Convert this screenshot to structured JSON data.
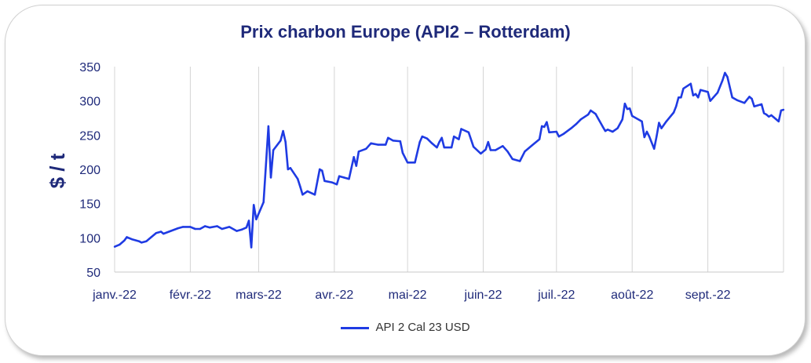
{
  "chart_data": {
    "type": "line",
    "title": "Prix charbon Europe (API2 – Rotterdam)",
    "ylabel": "$ / t",
    "xlabel": "",
    "ylim": [
      50,
      350
    ],
    "yticks": [
      50,
      100,
      150,
      200,
      250,
      300,
      350
    ],
    "x_tick_labels": [
      "janv.-22",
      "févr.-22",
      "mars-22",
      "avr.-22",
      "mai-22",
      "juin-22",
      "juil.-22",
      "août-22",
      "sept.-22"
    ],
    "grid": "vertical",
    "legend": "bottom",
    "series": [
      {
        "name": "API 2 Cal 23 USD",
        "color": "#1f3be3",
        "points": [
          [
            "2022-01-01",
            87
          ],
          [
            "2022-01-03",
            90
          ],
          [
            "2022-01-05",
            96
          ],
          [
            "2022-01-06",
            101
          ],
          [
            "2022-01-08",
            98
          ],
          [
            "2022-01-11",
            95
          ],
          [
            "2022-01-12",
            93
          ],
          [
            "2022-01-14",
            95
          ],
          [
            "2022-01-16",
            101
          ],
          [
            "2022-01-18",
            107
          ],
          [
            "2022-01-20",
            109
          ],
          [
            "2022-01-21",
            106
          ],
          [
            "2022-01-24",
            110
          ],
          [
            "2022-01-27",
            114
          ],
          [
            "2022-01-29",
            116
          ],
          [
            "2022-02-01",
            116
          ],
          [
            "2022-02-03",
            113
          ],
          [
            "2022-02-05",
            113
          ],
          [
            "2022-02-07",
            117
          ],
          [
            "2022-02-09",
            115
          ],
          [
            "2022-02-12",
            117
          ],
          [
            "2022-02-14",
            113
          ],
          [
            "2022-02-17",
            116
          ],
          [
            "2022-02-20",
            110
          ],
          [
            "2022-02-22",
            112
          ],
          [
            "2022-02-24",
            115
          ],
          [
            "2022-02-25",
            125
          ],
          [
            "2022-02-26",
            86
          ],
          [
            "2022-02-27",
            148
          ],
          [
            "2022-02-28",
            127
          ],
          [
            "2022-03-03",
            152
          ],
          [
            "2022-03-05",
            263
          ],
          [
            "2022-03-06",
            188
          ],
          [
            "2022-03-07",
            228
          ],
          [
            "2022-03-10",
            242
          ],
          [
            "2022-03-11",
            256
          ],
          [
            "2022-03-12",
            240
          ],
          [
            "2022-03-13",
            200
          ],
          [
            "2022-03-14",
            202
          ],
          [
            "2022-03-17",
            186
          ],
          [
            "2022-03-18",
            175
          ],
          [
            "2022-03-19",
            163
          ],
          [
            "2022-03-21",
            168
          ],
          [
            "2022-03-24",
            163
          ],
          [
            "2022-03-26",
            200
          ],
          [
            "2022-03-27",
            198
          ],
          [
            "2022-03-28",
            183
          ],
          [
            "2022-03-31",
            181
          ],
          [
            "2022-04-02",
            178
          ],
          [
            "2022-04-03",
            190
          ],
          [
            "2022-04-05",
            188
          ],
          [
            "2022-04-07",
            186
          ],
          [
            "2022-04-09",
            218
          ],
          [
            "2022-04-10",
            205
          ],
          [
            "2022-04-11",
            226
          ],
          [
            "2022-04-14",
            230
          ],
          [
            "2022-04-16",
            238
          ],
          [
            "2022-04-19",
            236
          ],
          [
            "2022-04-22",
            236
          ],
          [
            "2022-04-23",
            246
          ],
          [
            "2022-04-25",
            242
          ],
          [
            "2022-04-28",
            241
          ],
          [
            "2022-04-29",
            224
          ],
          [
            "2022-05-01",
            210
          ],
          [
            "2022-05-02",
            210
          ],
          [
            "2022-05-04",
            210
          ],
          [
            "2022-05-06",
            240
          ],
          [
            "2022-05-07",
            248
          ],
          [
            "2022-05-09",
            245
          ],
          [
            "2022-05-11",
            238
          ],
          [
            "2022-05-13",
            232
          ],
          [
            "2022-05-14",
            240
          ],
          [
            "2022-05-15",
            246
          ],
          [
            "2022-05-16",
            232
          ],
          [
            "2022-05-19",
            232
          ],
          [
            "2022-05-20",
            248
          ],
          [
            "2022-05-22",
            244
          ],
          [
            "2022-05-23",
            259
          ],
          [
            "2022-05-26",
            254
          ],
          [
            "2022-05-28",
            233
          ],
          [
            "2022-05-31",
            223
          ],
          [
            "2022-06-02",
            229
          ],
          [
            "2022-06-03",
            240
          ],
          [
            "2022-06-04",
            228
          ],
          [
            "2022-06-06",
            228
          ],
          [
            "2022-06-09",
            234
          ],
          [
            "2022-06-11",
            226
          ],
          [
            "2022-06-13",
            215
          ],
          [
            "2022-06-16",
            212
          ],
          [
            "2022-06-18",
            226
          ],
          [
            "2022-06-21",
            235
          ],
          [
            "2022-06-24",
            244
          ],
          [
            "2022-06-25",
            263
          ],
          [
            "2022-06-26",
            262
          ],
          [
            "2022-06-27",
            269
          ],
          [
            "2022-06-28",
            254
          ],
          [
            "2022-07-01",
            255
          ],
          [
            "2022-07-02",
            248
          ],
          [
            "2022-07-04",
            252
          ],
          [
            "2022-07-07",
            260
          ],
          [
            "2022-07-09",
            266
          ],
          [
            "2022-07-11",
            273
          ],
          [
            "2022-07-14",
            280
          ],
          [
            "2022-07-15",
            286
          ],
          [
            "2022-07-17",
            281
          ],
          [
            "2022-07-20",
            262
          ],
          [
            "2022-07-21",
            256
          ],
          [
            "2022-07-22",
            258
          ],
          [
            "2022-07-24",
            255
          ],
          [
            "2022-07-26",
            260
          ],
          [
            "2022-07-28",
            273
          ],
          [
            "2022-07-29",
            296
          ],
          [
            "2022-07-30",
            288
          ],
          [
            "2022-07-31",
            289
          ],
          [
            "2022-08-01",
            278
          ],
          [
            "2022-08-04",
            272
          ],
          [
            "2022-08-05",
            270
          ],
          [
            "2022-08-06",
            247
          ],
          [
            "2022-08-07",
            255
          ],
          [
            "2022-08-08",
            248
          ],
          [
            "2022-08-10",
            230
          ],
          [
            "2022-08-11",
            248
          ],
          [
            "2022-08-12",
            268
          ],
          [
            "2022-08-13",
            260
          ],
          [
            "2022-08-15",
            270
          ],
          [
            "2022-08-18",
            283
          ],
          [
            "2022-08-19",
            292
          ],
          [
            "2022-08-20",
            305
          ],
          [
            "2022-08-21",
            305
          ],
          [
            "2022-08-22",
            318
          ],
          [
            "2022-08-25",
            325
          ],
          [
            "2022-08-26",
            308
          ],
          [
            "2022-08-27",
            310
          ],
          [
            "2022-08-28",
            305
          ],
          [
            "2022-08-29",
            316
          ],
          [
            "2022-09-01",
            313
          ],
          [
            "2022-09-02",
            300
          ],
          [
            "2022-09-05",
            312
          ],
          [
            "2022-09-07",
            330
          ],
          [
            "2022-09-08",
            341
          ],
          [
            "2022-09-09",
            335
          ],
          [
            "2022-09-11",
            305
          ],
          [
            "2022-09-13",
            301
          ],
          [
            "2022-09-16",
            297
          ],
          [
            "2022-09-18",
            306
          ],
          [
            "2022-09-19",
            303
          ],
          [
            "2022-09-20",
            292
          ],
          [
            "2022-09-23",
            295
          ],
          [
            "2022-09-24",
            282
          ],
          [
            "2022-09-25",
            280
          ],
          [
            "2022-09-26",
            277
          ],
          [
            "2022-09-27",
            279
          ],
          [
            "2022-09-28",
            276
          ],
          [
            "2022-09-30",
            270
          ],
          [
            "2022-10-01",
            286
          ],
          [
            "2022-10-02",
            287
          ]
        ]
      }
    ]
  }
}
